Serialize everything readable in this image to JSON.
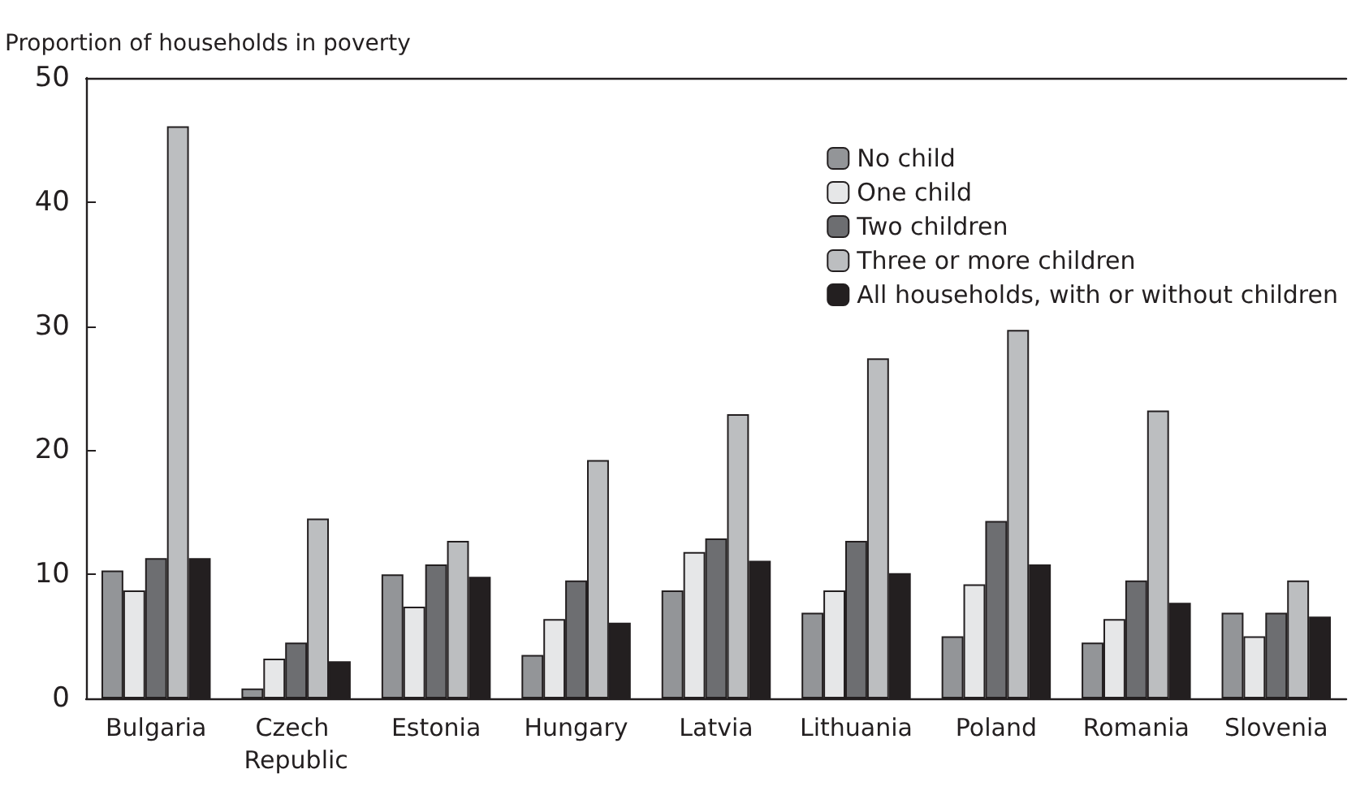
{
  "chart_data": {
    "type": "bar",
    "ylabel": "Proportion of households in poverty",
    "categories": [
      "Bulgaria",
      "Czech Republic",
      "Estonia",
      "Hungary",
      "Latvia",
      "Lithuania",
      "Poland",
      "Romania",
      "Slovenia"
    ],
    "series": [
      {
        "name": "No child",
        "color": "#939598",
        "values": [
          10.3,
          0.8,
          10.0,
          3.5,
          8.7,
          6.9,
          5.0,
          4.5,
          6.9
        ]
      },
      {
        "name": "One child",
        "color": "#e6e7e8",
        "values": [
          8.7,
          3.2,
          7.4,
          6.4,
          11.8,
          8.7,
          9.2,
          6.4,
          5.0
        ]
      },
      {
        "name": "Two children",
        "color": "#6d6e71",
        "values": [
          11.3,
          4.5,
          10.8,
          9.5,
          12.9,
          12.7,
          14.3,
          9.5,
          6.9
        ]
      },
      {
        "name": "Three or more children",
        "color": "#bcbec0",
        "values": [
          46.1,
          14.5,
          12.7,
          19.2,
          22.9,
          27.4,
          29.7,
          23.2,
          9.5
        ]
      },
      {
        "name": "All households, with or without children",
        "color": "#231f20",
        "values": [
          11.3,
          3.0,
          9.8,
          6.1,
          11.1,
          10.1,
          10.8,
          7.7,
          6.6
        ]
      }
    ],
    "ylim": [
      0,
      50
    ],
    "yticks": [
      0,
      10,
      20,
      30,
      40,
      50
    ],
    "grid": false,
    "legend": "top right"
  }
}
